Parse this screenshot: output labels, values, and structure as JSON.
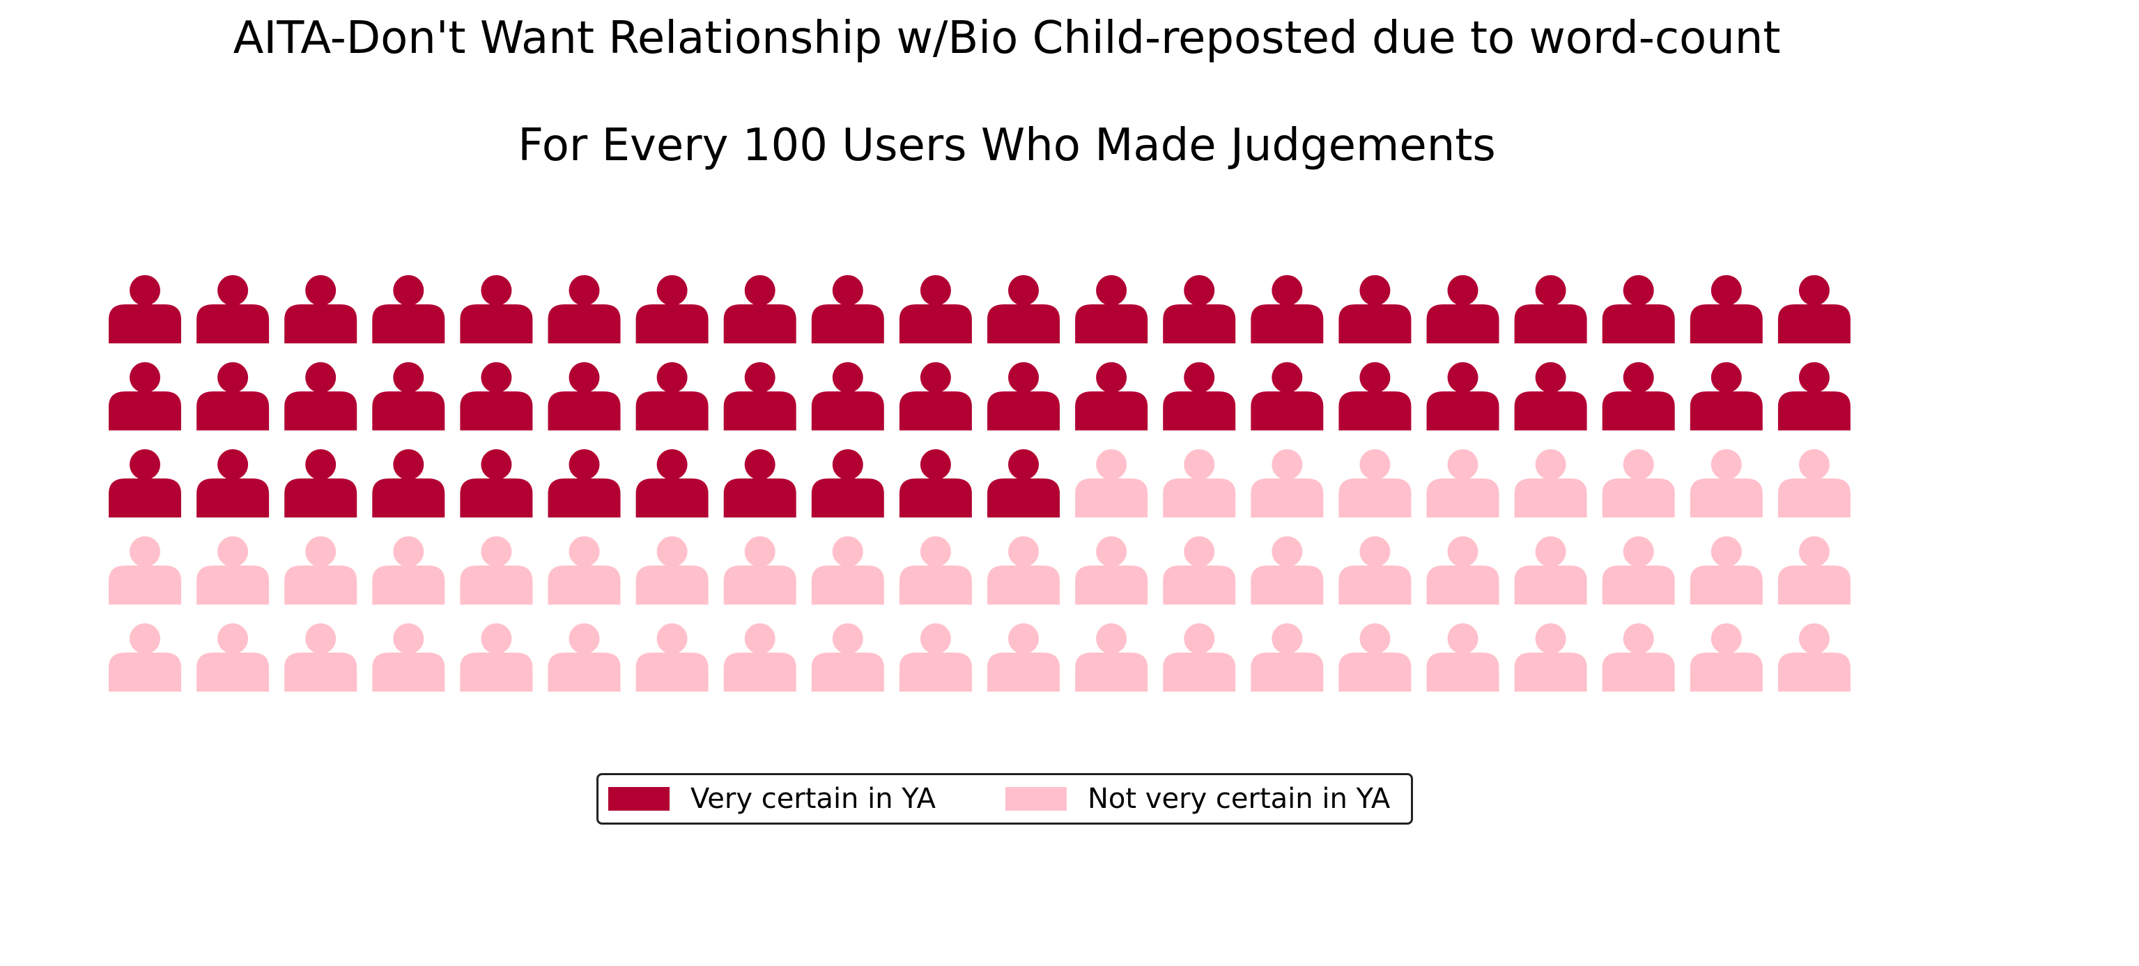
{
  "chart_data": {
    "type": "waffle",
    "title": "AITA-Don't Want Relationship w/Bio Child-reposted due to word-count",
    "subtitle": "For Every 100 Users Who Made Judgements",
    "total": 100,
    "rows": 5,
    "columns": 20,
    "icon": "person-icon",
    "fill_order": "row-major",
    "series": [
      {
        "name": "Very certain in YA",
        "value": 51,
        "color": "#b30033"
      },
      {
        "name": "Not very certain in YA",
        "value": 49,
        "color": "#ffc0cb"
      }
    ],
    "legend_placement": "bottom-center",
    "grid": false
  }
}
